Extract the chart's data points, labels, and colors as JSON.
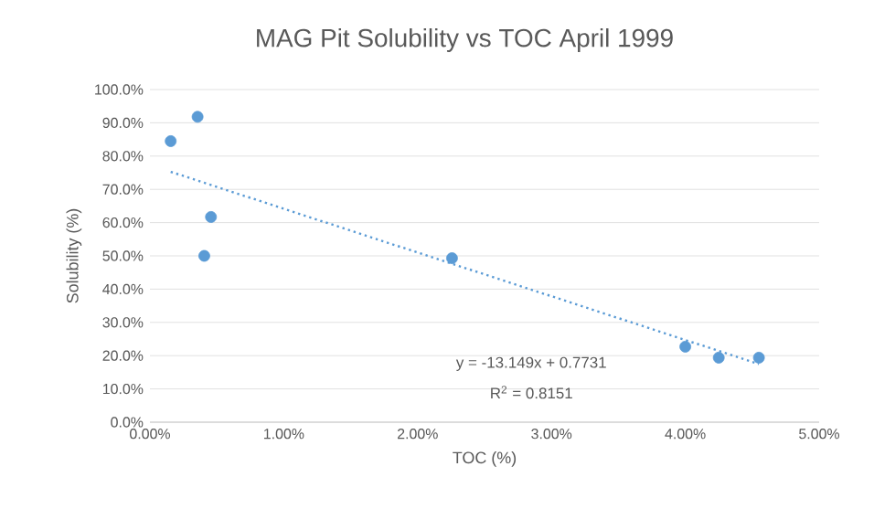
{
  "chart_data": {
    "type": "scatter",
    "title": "MAG Pit Solubility vs TOC April 1999",
    "xlabel": "TOC (%)",
    "ylabel": "Solubility (%)",
    "series": [
      {
        "color": "#5b9bd5",
        "marker": "circle",
        "x": [
          0.155,
          0.356,
          0.456,
          0.406,
          2.257,
          4.0,
          4.25,
          4.55
        ],
        "values": [
          84.5,
          91.8,
          61.7,
          50.0,
          49.3,
          22.7,
          19.4,
          19.4
        ]
      },
      {
        "type": "line",
        "color": "#5b9bd5",
        "line_style": "dotted",
        "marker": "none",
        "x": [
          0.155,
          4.55
        ],
        "values": [
          75.27,
          17.48
        ]
      }
    ],
    "xlim": [
      0,
      5
    ],
    "ylim": [
      0,
      100
    ],
    "xticks": [
      {
        "value": 0,
        "label": "0.00%"
      },
      {
        "value": 1,
        "label": "1.00%"
      },
      {
        "value": 2,
        "label": "2.00%"
      },
      {
        "value": 3,
        "label": "3.00%"
      },
      {
        "value": 4,
        "label": "4.00%"
      },
      {
        "value": 5,
        "label": "5.00%"
      }
    ],
    "yticks": [
      {
        "value": 0,
        "label": "0.0%"
      },
      {
        "value": 10,
        "label": "10.0%"
      },
      {
        "value": 20,
        "label": "20.0%"
      },
      {
        "value": 30,
        "label": "30.0%"
      },
      {
        "value": 40,
        "label": "40.0%"
      },
      {
        "value": 50,
        "label": "50.0%"
      },
      {
        "value": 60,
        "label": "60.0%"
      },
      {
        "value": 70,
        "label": "70.0%"
      },
      {
        "value": 80,
        "label": "80.0%"
      },
      {
        "value": 90,
        "label": "90.0%"
      },
      {
        "value": 100,
        "label": "100.0%"
      }
    ],
    "grid": "y",
    "annotations": [
      "y = -13.149x + 0.7731",
      "R$^{2}$ = 0.8151"
    ]
  }
}
